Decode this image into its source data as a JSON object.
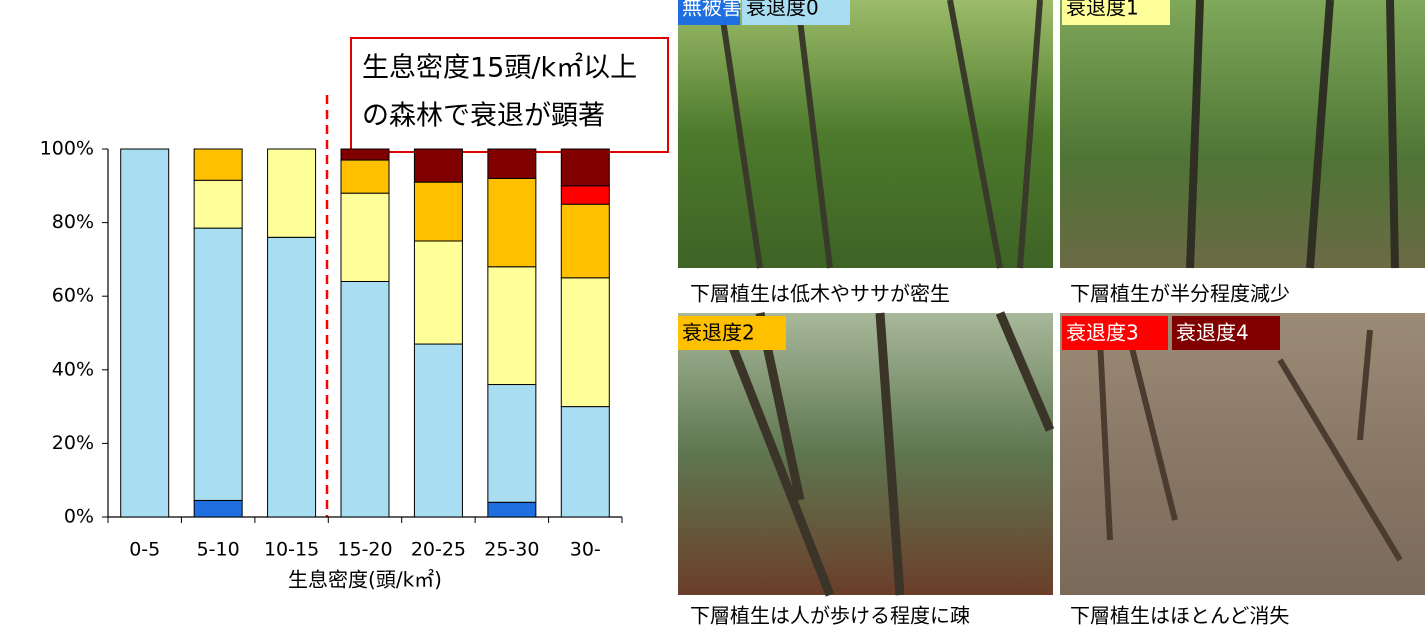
{
  "chart_data": {
    "type": "bar",
    "stacked": true,
    "annotation": [
      "生息密度15頭/k㎡以上",
      "の森林で衰退が顕著"
    ],
    "x_label": "生息密度(頭/k㎡)",
    "categories": [
      "0-5",
      "5-10",
      "10-15",
      "15-20",
      "20-25",
      "25-30",
      "30-"
    ],
    "series": [
      {
        "name": "無被害",
        "color": "#1f6fe0",
        "values": [
          0,
          4.5,
          0,
          0,
          0,
          4,
          0
        ]
      },
      {
        "name": "衰退度0",
        "color": "#a9ddf2",
        "values": [
          100,
          74,
          76,
          64,
          47,
          32,
          30
        ]
      },
      {
        "name": "衰退度1",
        "color": "#ffff99",
        "values": [
          0,
          13,
          24,
          24,
          28,
          32,
          35
        ]
      },
      {
        "name": "衰退度2",
        "color": "#ffc000",
        "values": [
          0,
          8.5,
          0,
          9,
          16,
          24,
          20
        ]
      },
      {
        "name": "衰退度3",
        "color": "#ff0000",
        "values": [
          0,
          0,
          0,
          0,
          0,
          0,
          5
        ]
      },
      {
        "name": "衰退度4",
        "color": "#800000",
        "values": [
          0,
          0,
          0,
          3,
          9,
          8,
          10
        ]
      }
    ],
    "ylim": [
      0,
      100
    ],
    "yticks": [
      {
        "value": 0,
        "label": "0%"
      },
      {
        "value": 20,
        "label": "20%"
      },
      {
        "value": 40,
        "label": "40%"
      },
      {
        "value": 60,
        "label": "60%"
      },
      {
        "value": 80,
        "label": "80%"
      },
      {
        "value": 100,
        "label": "100%"
      }
    ]
  },
  "photos": [
    {
      "caption": "下層植生は低木やササが密生"
    },
    {
      "caption": "下層植生が半分程度減少"
    },
    {
      "caption": "下層植生は人が歩ける程度に疎"
    },
    {
      "caption": "下層植生はほとんど消失"
    }
  ]
}
